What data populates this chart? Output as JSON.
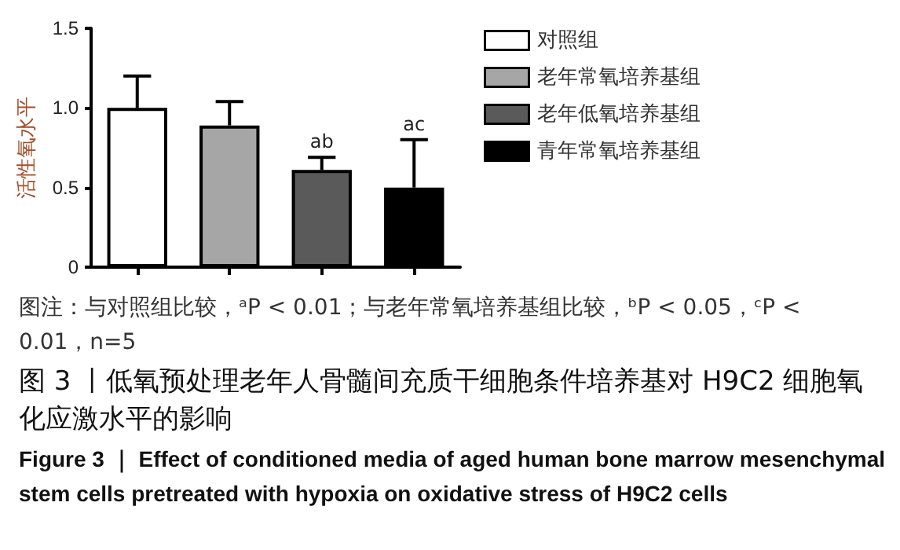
{
  "chart_data": {
    "type": "bar",
    "title": "图 3 丨低氧预处理老年人骨髓间充质干细胞条件培养基对 H9C2 细胞氧化应激水平的影响",
    "subtitle": "Figure 3 ｜ Effect of conditioned media of aged human bone marrow mesenchymal stem cells pretreated with hypoxia on oxidative stress of H9C2 cells",
    "ylabel": "活性氧水平",
    "annotations": [
      "图注：与对照组比较，ᵃP < 0.01；与老年常氧培养基组比较，ᵇP < 0.05，ᶜP < 0.01，n=5"
    ],
    "categories": [
      null,
      null,
      null,
      null
    ],
    "series": [
      {
        "name": "对照组",
        "color": "#ffffff",
        "values": [
          1.0,
          null,
          null,
          null
        ],
        "errors": [
          0.2,
          null,
          null,
          null
        ]
      },
      {
        "name": "老年常氧培养基组",
        "color": "#a6a6a6",
        "values": [
          null,
          0.89,
          null,
          null
        ],
        "errors": [
          null,
          0.15,
          null,
          null
        ]
      },
      {
        "name": "老年低氧培养基组",
        "color": "#5a5a5a",
        "values": [
          null,
          null,
          0.61,
          null
        ],
        "errors": [
          null,
          null,
          0.08,
          null
        ],
        "value_labels": [
          null,
          null,
          "ab",
          null
        ]
      },
      {
        "name": "青年常氧培养基组",
        "color": "#000000",
        "values": [
          null,
          null,
          null,
          0.5
        ],
        "errors": [
          null,
          null,
          null,
          0.3
        ],
        "value_labels": [
          null,
          null,
          null,
          "ac"
        ]
      }
    ],
    "ylim": [
      0,
      1.5
    ],
    "yticks": [
      0,
      0.5,
      {
        "value": 1,
        "label": "1.0"
      },
      1.5
    ],
    "legend": "right",
    "grid": false
  }
}
